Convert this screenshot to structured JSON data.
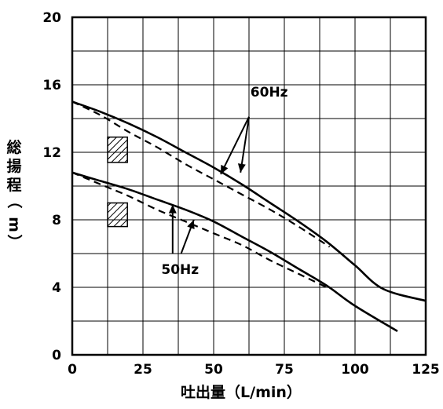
{
  "chart_data": {
    "type": "line",
    "title": "",
    "xlabel": "吐出量（L/min）",
    "ylabel": "総揚程（m）",
    "xlim": [
      0,
      125
    ],
    "ylim": [
      0,
      20
    ],
    "x_ticks": [
      "0",
      "25",
      "50",
      "75",
      "100",
      "125"
    ],
    "y_ticks": [
      "0",
      "4",
      "8",
      "12",
      "16",
      "20"
    ],
    "grid": true,
    "legend": "none",
    "annotations": [
      {
        "text": "60Hz",
        "points_to": [
          "60Hz-solid",
          "60Hz-dashed"
        ]
      },
      {
        "text": "50Hz",
        "points_to": [
          "50Hz-solid",
          "50Hz-dashed"
        ]
      }
    ],
    "series": [
      {
        "key": "60Hz-solid",
        "style": "solid",
        "x": [
          0,
          10,
          20,
          30,
          40,
          50,
          60,
          70,
          80,
          90,
          100,
          110,
          125
        ],
        "y": [
          15.0,
          14.4,
          13.7,
          12.9,
          12.0,
          11.1,
          10.1,
          9.0,
          7.9,
          6.7,
          5.3,
          3.9,
          3.2
        ]
      },
      {
        "key": "60Hz-dashed",
        "style": "dashed",
        "x": [
          0,
          10,
          20,
          30,
          40,
          50,
          60,
          70,
          80,
          91
        ],
        "y": [
          15.0,
          14.2,
          13.2,
          12.3,
          11.3,
          10.4,
          9.5,
          8.6,
          7.6,
          6.4
        ]
      },
      {
        "key": "50Hz-solid",
        "style": "solid",
        "x": [
          0,
          10,
          20,
          30,
          40,
          50,
          60,
          70,
          80,
          90,
          100,
          115
        ],
        "y": [
          10.8,
          10.3,
          9.8,
          9.2,
          8.6,
          7.9,
          7.0,
          6.1,
          5.1,
          4.1,
          2.9,
          1.4
        ]
      },
      {
        "key": "50Hz-dashed",
        "style": "dashed",
        "x": [
          0,
          10,
          20,
          30,
          40,
          50,
          60,
          70,
          80,
          90
        ],
        "y": [
          10.8,
          10.1,
          9.4,
          8.6,
          7.9,
          7.2,
          6.5,
          5.6,
          4.8,
          4.0
        ]
      }
    ]
  }
}
